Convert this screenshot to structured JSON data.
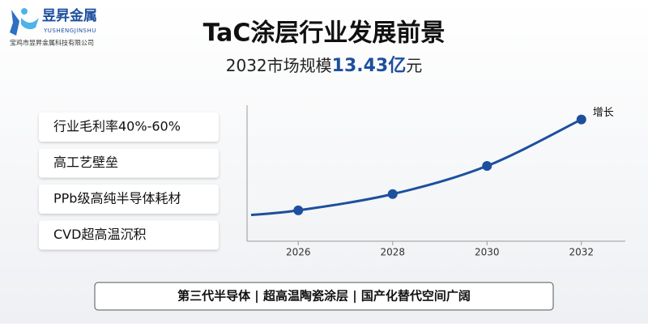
{
  "logo": {
    "name": "昱昇金属",
    "romanized": "YUSHENGJINSHU",
    "company": "宝鸡市昱昇金属科技有限公司"
  },
  "header": {
    "title": "TaC涂层行业发展前景",
    "subtitle_prefix": "2032市场规模",
    "subtitle_highlight": "13.43亿",
    "subtitle_suffix": "元"
  },
  "features": [
    "行业毛利率40%-60%",
    "高工艺壁垒",
    "PPb级高纯半导体耗材",
    "CVD超高温沉积"
  ],
  "footer": "第三代半导体 | 超高温陶瓷涂层 | 国产化替代空间广阔",
  "chart_data": {
    "type": "line",
    "x": [
      2025,
      2026,
      2028,
      2030,
      2032
    ],
    "series": [
      {
        "name": "增长",
        "color": "#1d4f9e",
        "values": [
          2.9,
          3.4,
          5.2,
          8.3,
          13.43
        ]
      }
    ],
    "xlim": [
      2025,
      2033
    ],
    "xticks": [
      2026,
      2028,
      2030,
      2032
    ],
    "ylim": [
      0,
      15
    ],
    "grid": false,
    "smooth": true,
    "markers": true
  }
}
